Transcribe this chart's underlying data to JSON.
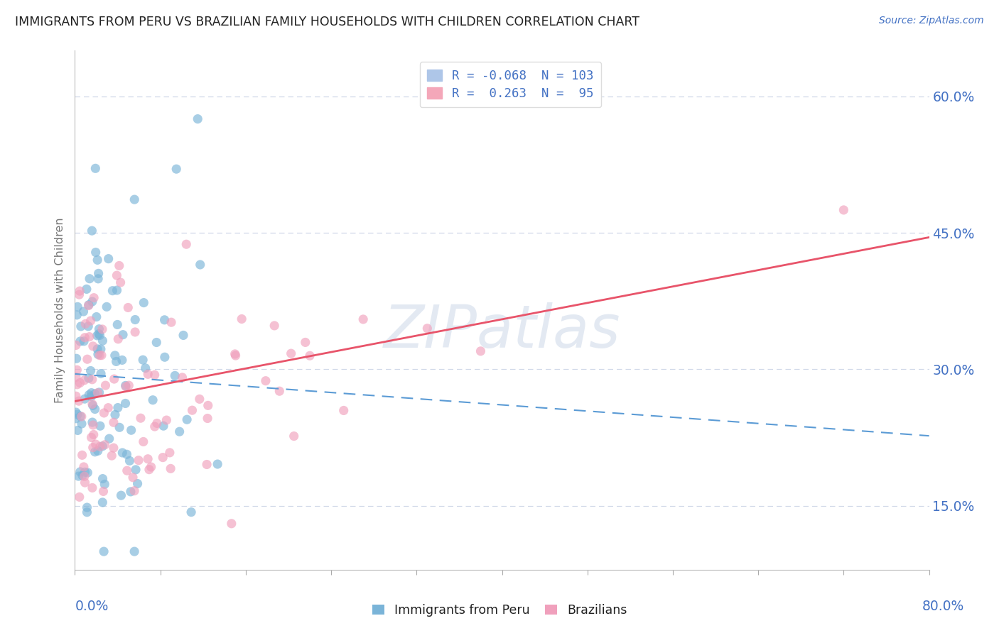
{
  "title": "IMMIGRANTS FROM PERU VS BRAZILIAN FAMILY HOUSEHOLDS WITH CHILDREN CORRELATION CHART",
  "source_text": "Source: ZipAtlas.com",
  "ylabel": "Family Households with Children",
  "yticks": [
    0.15,
    0.3,
    0.45,
    0.6
  ],
  "ytick_labels": [
    "15.0%",
    "30.0%",
    "45.0%",
    "60.0%"
  ],
  "xlim": [
    0.0,
    0.8
  ],
  "ylim": [
    0.08,
    0.65
  ],
  "blue_color": "#7ab4d8",
  "pink_color": "#f0a0bc",
  "blue_line_color": "#5b9bd5",
  "pink_line_color": "#e8546a",
  "axis_label_color": "#4472c4",
  "background_color": "#ffffff",
  "grid_color": "#d0d8e8",
  "watermark": "ZIPatlas",
  "watermark_color": "#c8d8e8",
  "title_color": "#222222",
  "blue_intercept": 0.295,
  "blue_slope": -0.085,
  "pink_intercept": 0.265,
  "pink_slope": 0.225
}
